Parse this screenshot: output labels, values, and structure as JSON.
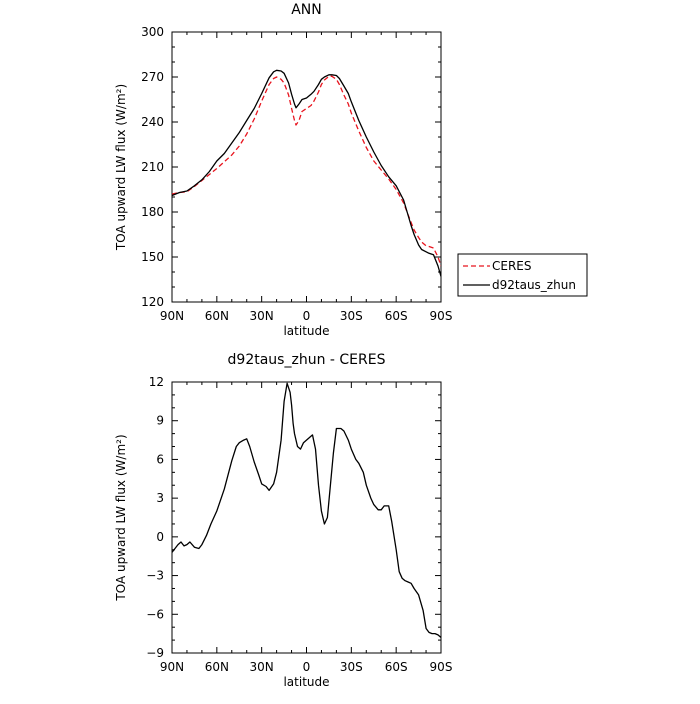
{
  "chart_data": [
    {
      "type": "line",
      "title": "ANN",
      "xlabel": "latitude",
      "ylabel": "TOA upward LW flux (W/m²)",
      "xlim": [
        90,
        -90
      ],
      "ylim": [
        120,
        300
      ],
      "xticks": [
        90,
        60,
        30,
        0,
        -30,
        -60,
        -90
      ],
      "xtick_labels": [
        "90N",
        "60N",
        "30N",
        "0",
        "30S",
        "60S",
        "90S"
      ],
      "yticks": [
        120,
        150,
        180,
        210,
        240,
        270,
        300
      ],
      "ytick_labels": [
        "120",
        "150",
        "180",
        "210",
        "240",
        "270",
        "300"
      ],
      "legend_position": "outside-right",
      "series": [
        {
          "name": "CERES",
          "color": "#e8141e",
          "dash": "dashed",
          "x": [
            90,
            85,
            80,
            75,
            70,
            65,
            60,
            55,
            50,
            45,
            40,
            35,
            30,
            25,
            22,
            20,
            17,
            15,
            12,
            10,
            8,
            7,
            5,
            3,
            0,
            -3,
            -5,
            -8,
            -10,
            -12,
            -15,
            -17,
            -20,
            -22,
            -25,
            -28,
            -30,
            -35,
            -40,
            -45,
            -50,
            -55,
            -60,
            -65,
            -70,
            -72,
            -75,
            -77,
            -80,
            -82,
            -85,
            -88,
            -90
          ],
          "y": [
            192,
            193,
            193.5,
            197,
            201,
            205,
            209,
            213.5,
            218,
            224,
            232,
            242,
            254,
            265,
            269,
            270,
            268.5,
            266,
            258,
            249,
            241,
            238,
            241,
            247,
            249,
            251,
            254,
            260,
            265,
            268,
            270.5,
            270.5,
            268.5,
            265,
            258,
            252,
            246,
            234,
            223,
            214,
            208,
            202,
            195,
            186,
            173,
            168,
            163,
            160,
            157.5,
            157,
            156,
            150,
            144
          ]
        },
        {
          "name": "d92taus_zhun",
          "color": "#000000",
          "dash": "solid",
          "x": [
            90,
            85,
            80,
            75,
            70,
            65,
            60,
            55,
            50,
            45,
            40,
            35,
            30,
            25,
            22,
            20,
            17,
            15,
            12,
            10,
            8,
            7,
            5,
            3,
            0,
            -3,
            -5,
            -8,
            -10,
            -12,
            -15,
            -17,
            -20,
            -22,
            -25,
            -28,
            -30,
            -35,
            -40,
            -45,
            -50,
            -55,
            -60,
            -65,
            -70,
            -72,
            -75,
            -77,
            -80,
            -82,
            -85,
            -88,
            -90
          ],
          "y": [
            191,
            193,
            194,
            197.5,
            201.5,
            207,
            214,
            219,
            226,
            233,
            241,
            249,
            259,
            269.5,
            273.5,
            274.5,
            274,
            272.5,
            266,
            258.5,
            252,
            249.5,
            252,
            255,
            256,
            258.5,
            260.5,
            265,
            268.5,
            270,
            271.5,
            271.5,
            271,
            269,
            264,
            259,
            253.5,
            241,
            230,
            220,
            211,
            203.5,
            197.5,
            188,
            171,
            165,
            158,
            155,
            153.5,
            152.5,
            151.5,
            144,
            137
          ]
        }
      ]
    },
    {
      "type": "line",
      "title": "d92taus_zhun - CERES",
      "xlabel": "latitude",
      "ylabel": "TOA upward LW flux (W/m²)",
      "xlim": [
        90,
        -90
      ],
      "ylim": [
        -9,
        12
      ],
      "xticks": [
        90,
        60,
        30,
        0,
        -30,
        -60,
        -90
      ],
      "xtick_labels": [
        "90N",
        "60N",
        "30N",
        "0",
        "30S",
        "60S",
        "90S"
      ],
      "yticks": [
        -9,
        -6,
        -3,
        0,
        3,
        6,
        9,
        12
      ],
      "ytick_labels": [
        "−9",
        "−6",
        "−3",
        "0",
        "3",
        "6",
        "9",
        "12"
      ],
      "series": [
        {
          "name": "",
          "color": "#000000",
          "dash": "solid",
          "x": [
            90,
            88,
            86,
            84,
            82,
            80,
            78,
            75,
            72,
            70,
            67,
            64,
            60,
            55,
            50,
            47,
            45,
            42,
            40,
            38,
            35,
            32,
            30,
            27,
            25,
            22,
            20,
            17,
            15,
            13,
            11,
            10,
            9,
            8,
            6,
            4,
            2,
            0,
            -2,
            -4,
            -6,
            -8,
            -10,
            -12,
            -14,
            -16,
            -18,
            -20,
            -23,
            -25,
            -28,
            -30,
            -33,
            -35,
            -38,
            -40,
            -43,
            -45,
            -48,
            -50,
            -52,
            -55,
            -57,
            -60,
            -62,
            -64,
            -66,
            -68,
            -70,
            -72,
            -75,
            -78,
            -80,
            -82,
            -84,
            -86,
            -88,
            -90
          ],
          "y": [
            -1.2,
            -0.9,
            -0.6,
            -0.4,
            -0.7,
            -0.6,
            -0.4,
            -0.8,
            -0.9,
            -0.6,
            0.1,
            1.0,
            2.0,
            3.7,
            5.9,
            7.0,
            7.3,
            7.5,
            7.6,
            7.0,
            5.8,
            4.8,
            4.1,
            3.9,
            3.6,
            4.1,
            5.0,
            7.5,
            10.5,
            11.9,
            11.2,
            10.2,
            8.8,
            8.0,
            7.0,
            6.8,
            7.3,
            7.5,
            7.7,
            7.9,
            6.8,
            4.0,
            2.0,
            1.0,
            1.5,
            4.0,
            6.5,
            8.4,
            8.4,
            8.2,
            7.5,
            6.8,
            6.0,
            5.7,
            5.0,
            4.0,
            3.0,
            2.5,
            2.1,
            2.1,
            2.4,
            2.4,
            1.2,
            -1.0,
            -2.7,
            -3.2,
            -3.4,
            -3.5,
            -3.6,
            -4.0,
            -4.5,
            -5.7,
            -7.1,
            -7.4,
            -7.5,
            -7.5,
            -7.6,
            -7.8
          ]
        }
      ]
    }
  ]
}
